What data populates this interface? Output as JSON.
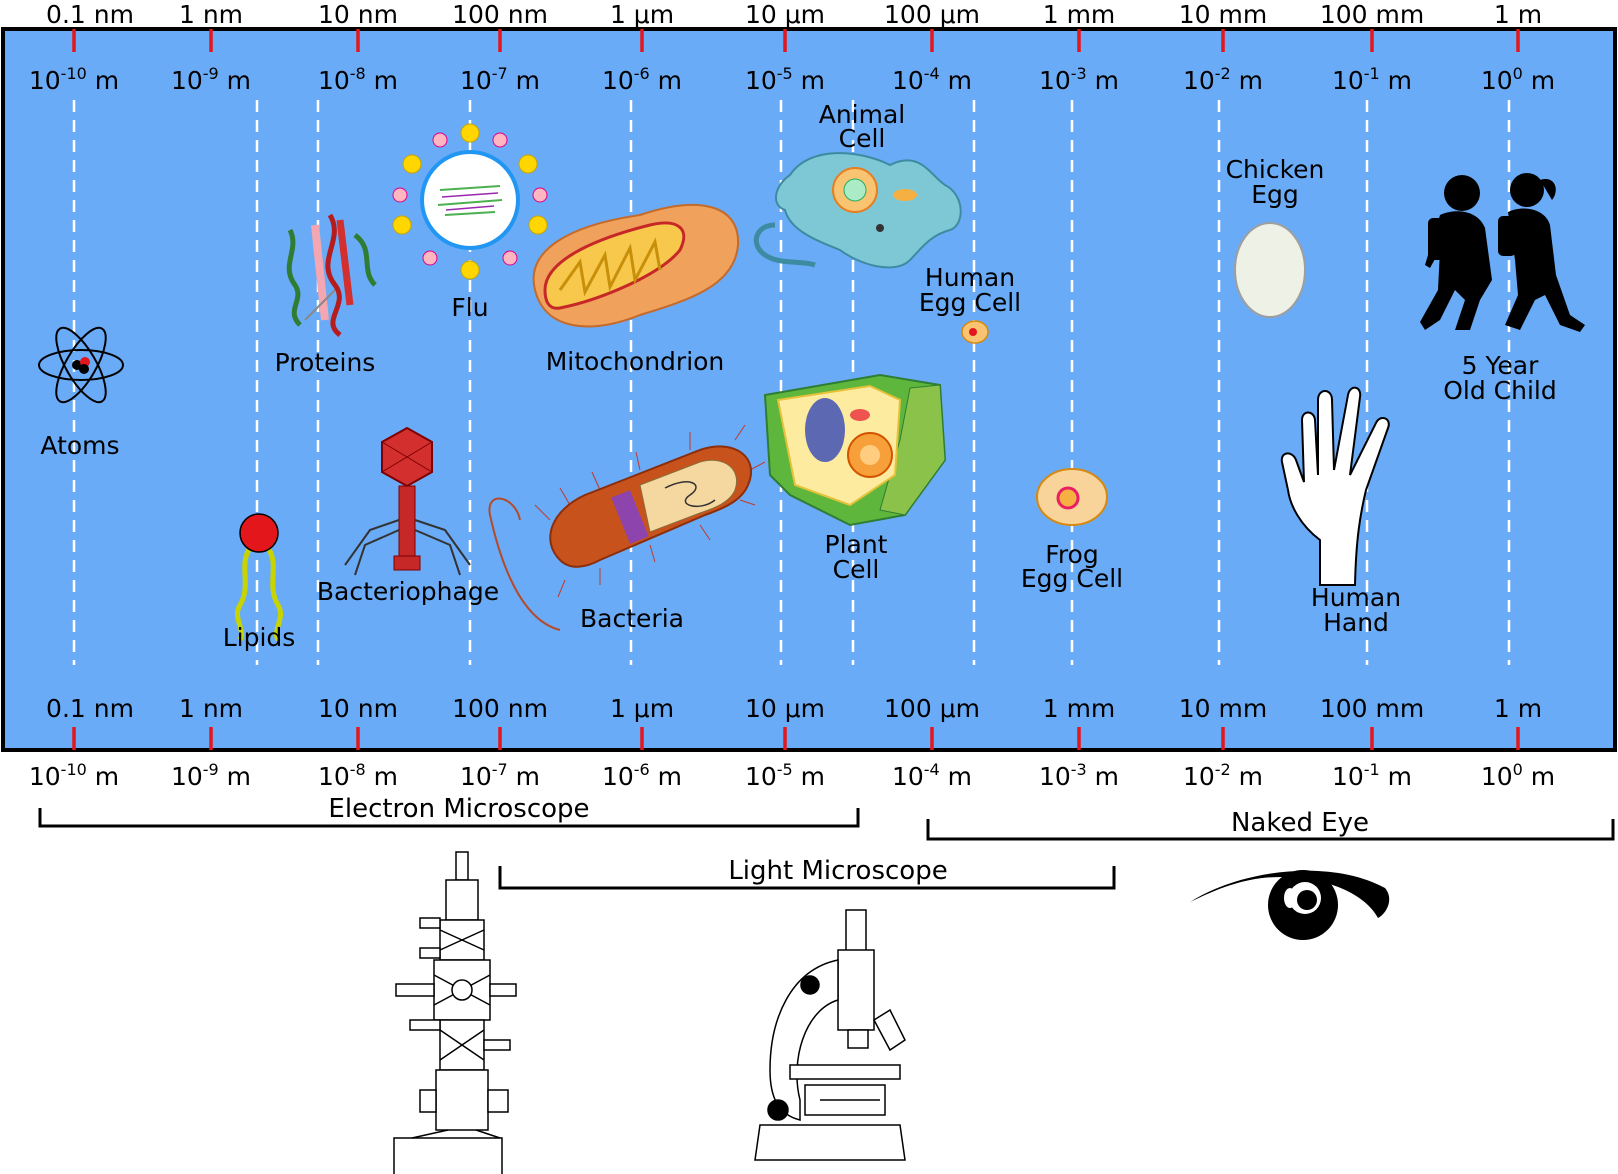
{
  "scale": {
    "ticks": [
      {
        "name": "0.1 nm",
        "power": "-10"
      },
      {
        "name": "1 nm",
        "power": "-9"
      },
      {
        "name": "10 nm",
        "power": "-8"
      },
      {
        "name": "100 nm",
        "power": "-7"
      },
      {
        "name": "1 μm",
        "power": "-6"
      },
      {
        "name": "10 μm",
        "power": "-5"
      },
      {
        "name": "100 μm",
        "power": "-4"
      },
      {
        "name": "1 mm",
        "power": "-3"
      },
      {
        "name": "10 mm",
        "power": "-2"
      },
      {
        "name": "100 mm",
        "power": "-1"
      },
      {
        "name": "1 m",
        "power": "0"
      }
    ],
    "base": "10",
    "unit": "m"
  },
  "objects": {
    "atoms": "Atoms",
    "lipids": "Lipids",
    "proteins_l1": "Proteins",
    "bacteriophage": "Bacteriophage",
    "flu": "Flu",
    "mitochondrion": "Mitochondrion",
    "bacteria": "Bacteria",
    "animal_cell": [
      "Animal",
      "Cell"
    ],
    "plant_cell": [
      "Plant",
      "Cell"
    ],
    "human_egg": [
      "Human",
      "Egg Cell"
    ],
    "frog_egg": [
      "Frog",
      "Egg Cell"
    ],
    "chicken_egg": [
      "Chicken",
      "Egg"
    ],
    "human_hand": [
      "Human",
      "Hand"
    ],
    "child": [
      "5 Year",
      "Old Child"
    ]
  },
  "ranges": {
    "electron": "Electron Microscope",
    "light": "Light Microscope",
    "eye": "Naked Eye"
  },
  "colors": {
    "panel": "#6aabf7",
    "tick": "#e3161b",
    "border": "#000000"
  },
  "icons": [
    "atom-icon",
    "lipid-icon",
    "protein-icon",
    "bacteriophage-icon",
    "flu-virus-icon",
    "mitochondrion-icon",
    "bacteria-icon",
    "animal-cell-icon",
    "plant-cell-icon",
    "human-egg-icon",
    "frog-egg-icon",
    "chicken-egg-icon",
    "hand-icon",
    "children-silhouette-icon",
    "electron-microscope-icon",
    "light-microscope-icon",
    "eye-icon"
  ]
}
